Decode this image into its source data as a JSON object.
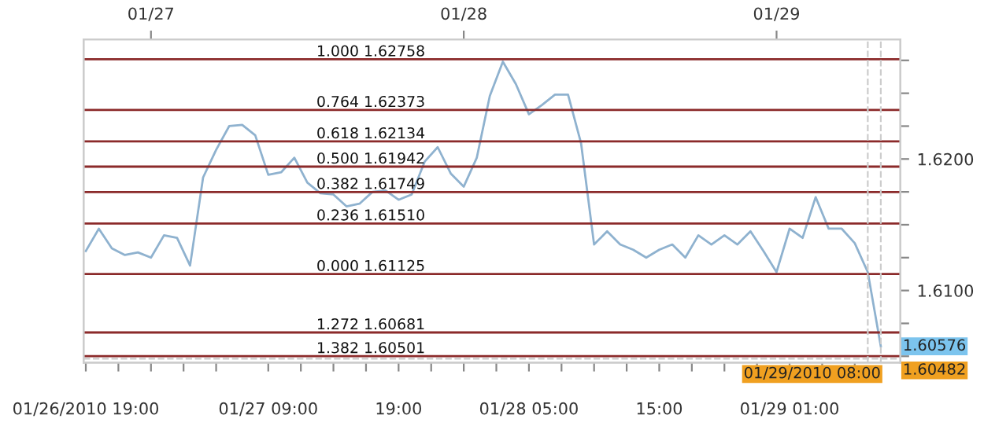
{
  "chart_data": {
    "type": "line",
    "x": [
      "2010-01-26T19:00",
      "2010-01-26T20:00",
      "2010-01-26T21:00",
      "2010-01-26T22:00",
      "2010-01-26T23:00",
      "2010-01-27T00:00",
      "2010-01-27T01:00",
      "2010-01-27T02:00",
      "2010-01-27T03:00",
      "2010-01-27T04:00",
      "2010-01-27T05:00",
      "2010-01-27T06:00",
      "2010-01-27T07:00",
      "2010-01-27T08:00",
      "2010-01-27T09:00",
      "2010-01-27T10:00",
      "2010-01-27T11:00",
      "2010-01-27T12:00",
      "2010-01-27T13:00",
      "2010-01-27T14:00",
      "2010-01-27T15:00",
      "2010-01-27T16:00",
      "2010-01-27T17:00",
      "2010-01-27T18:00",
      "2010-01-27T19:00",
      "2010-01-27T20:00",
      "2010-01-27T21:00",
      "2010-01-27T22:00",
      "2010-01-27T23:00",
      "2010-01-28T00:00",
      "2010-01-28T01:00",
      "2010-01-28T02:00",
      "2010-01-28T03:00",
      "2010-01-28T04:00",
      "2010-01-28T05:00",
      "2010-01-28T06:00",
      "2010-01-28T07:00",
      "2010-01-28T08:00",
      "2010-01-28T09:00",
      "2010-01-28T10:00",
      "2010-01-28T11:00",
      "2010-01-28T12:00",
      "2010-01-28T13:00",
      "2010-01-28T14:00",
      "2010-01-28T15:00",
      "2010-01-28T16:00",
      "2010-01-28T17:00",
      "2010-01-28T18:00",
      "2010-01-28T19:00",
      "2010-01-28T20:00",
      "2010-01-28T21:00",
      "2010-01-28T22:00",
      "2010-01-28T23:00",
      "2010-01-29T00:00",
      "2010-01-29T01:00",
      "2010-01-29T02:00",
      "2010-01-29T03:00",
      "2010-01-29T04:00",
      "2010-01-29T05:00",
      "2010-01-29T06:00",
      "2010-01-29T07:00",
      "2010-01-29T08:00"
    ],
    "series": [
      {
        "color": "#8fb2cf",
        "values": [
          1.613,
          1.6147,
          1.6132,
          1.6127,
          1.6129,
          1.6125,
          1.6142,
          1.614,
          1.6119,
          1.6186,
          1.6207,
          1.6225,
          1.6226,
          1.6218,
          1.6188,
          1.619,
          1.6201,
          1.6182,
          1.6174,
          1.6173,
          1.6164,
          1.6166,
          1.6175,
          1.6176,
          1.6169,
          1.6173,
          1.6198,
          1.6209,
          1.6189,
          1.6179,
          1.6201,
          1.6248,
          1.6274,
          1.6257,
          1.6234,
          1.6241,
          1.6249,
          1.6249,
          1.6212,
          1.6135,
          1.6145,
          1.6135,
          1.6131,
          1.6125,
          1.6131,
          1.6135,
          1.6125,
          1.6142,
          1.6135,
          1.6142,
          1.6135,
          1.6145,
          1.613,
          1.6114,
          1.6147,
          1.614,
          1.6171,
          1.6147,
          1.6147,
          1.6136,
          1.6114,
          1.60576
        ]
      }
    ],
    "xlim": [
      "2010-01-26T18:50",
      "2010-01-29T09:30"
    ],
    "xticks": [
      {
        "value": "2010-01-26T19:00",
        "label": "01/26/2010 19:00"
      },
      {
        "value": "2010-01-26T21:30",
        "label": null
      },
      {
        "value": "2010-01-27T00:00",
        "label": null
      },
      {
        "value": "2010-01-27T02:30",
        "label": null
      },
      {
        "value": "2010-01-27T05:00",
        "label": null
      },
      {
        "value": "2010-01-27T09:00",
        "label": "01/27 09:00"
      },
      {
        "value": "2010-01-27T11:30",
        "label": null
      },
      {
        "value": "2010-01-27T14:00",
        "label": null
      },
      {
        "value": "2010-01-27T16:30",
        "label": null
      },
      {
        "value": "2010-01-27T19:00",
        "label": "19:00"
      },
      {
        "value": "2010-01-27T21:30",
        "label": null
      },
      {
        "value": "2010-01-28T00:00",
        "label": null
      },
      {
        "value": "2010-01-28T02:30",
        "label": null
      },
      {
        "value": "2010-01-28T05:00",
        "label": "01/28 05:00"
      },
      {
        "value": "2010-01-28T07:30",
        "label": null
      },
      {
        "value": "2010-01-28T10:00",
        "label": null
      },
      {
        "value": "2010-01-28T12:30",
        "label": null
      },
      {
        "value": "2010-01-28T15:00",
        "label": "15:00"
      },
      {
        "value": "2010-01-28T17:30",
        "label": null
      },
      {
        "value": "2010-01-28T20:00",
        "label": null
      },
      {
        "value": "2010-01-28T22:30",
        "label": null
      },
      {
        "value": "2010-01-29T01:00",
        "label": "01/29 01:00"
      },
      {
        "value": "2010-01-29T03:30",
        "label": null
      },
      {
        "value": "2010-01-29T06:00",
        "label": null
      }
    ],
    "x2lim": [
      "2010-01-26T18:50",
      "2010-01-29T09:30"
    ],
    "x2ticks": [
      {
        "value": "2010-01-27T00:00",
        "label": "01/27"
      },
      {
        "value": "2010-01-28T00:00",
        "label": "01/28"
      },
      {
        "value": "2010-01-29T00:00",
        "label": "01/29"
      }
    ],
    "ylim": [
      1.60451,
      1.6291
    ],
    "yticks": [
      {
        "value": 1.605,
        "label": null
      },
      {
        "value": 1.6075,
        "label": null
      },
      {
        "value": 1.61,
        "label": "1.6100"
      },
      {
        "value": 1.6125,
        "label": null
      },
      {
        "value": 1.615,
        "label": null
      },
      {
        "value": 1.6175,
        "label": null
      },
      {
        "value": 1.62,
        "label": "1.6200"
      },
      {
        "value": 1.6225,
        "label": null
      },
      {
        "value": 1.625,
        "label": null
      },
      {
        "value": 1.6275,
        "label": null
      }
    ],
    "ref_lines": [
      {
        "axis": "y",
        "value": 1.62758,
        "label": "1.000 1.62758",
        "color": "#8b2a2a"
      },
      {
        "axis": "y",
        "value": 1.62373,
        "label": "0.764 1.62373",
        "color": "#8b2a2a"
      },
      {
        "axis": "y",
        "value": 1.62134,
        "label": "0.618 1.62134",
        "color": "#8b2a2a"
      },
      {
        "axis": "y",
        "value": 1.61942,
        "label": "0.500 1.61942",
        "color": "#8b2a2a"
      },
      {
        "axis": "y",
        "value": 1.61749,
        "label": "0.382 1.61749",
        "color": "#8b2a2a"
      },
      {
        "axis": "y",
        "value": 1.6151,
        "label": "0.236 1.61510",
        "color": "#8b2a2a"
      },
      {
        "axis": "y",
        "value": 1.61125,
        "label": "0.000 1.61125",
        "color": "#8b2a2a"
      },
      {
        "axis": "y",
        "value": 1.60681,
        "label": "1.272 1.60681",
        "color": "#8b2a2a"
      },
      {
        "axis": "y",
        "value": 1.60501,
        "label": "1.382 1.60501",
        "color": "#8b2a2a"
      },
      {
        "axis": "y",
        "value": 1.60482,
        "label": "1.60482",
        "color": "#cccccc",
        "line_style": "dashed"
      },
      {
        "axis": "x",
        "value": "2010-01-29T08:00",
        "label": "01/29/2010 08:00",
        "color": "#cccccc",
        "line_style": "dashed"
      },
      {
        "axis": "x",
        "value": "2010-01-29T07:00",
        "color": "#cccccc",
        "line_style": "dashed"
      }
    ],
    "annotations": [
      {
        "text": "1.60576",
        "x": "2010-01-29T08:00",
        "y": 1.60576
      }
    ],
    "grid": false,
    "legend": false
  }
}
